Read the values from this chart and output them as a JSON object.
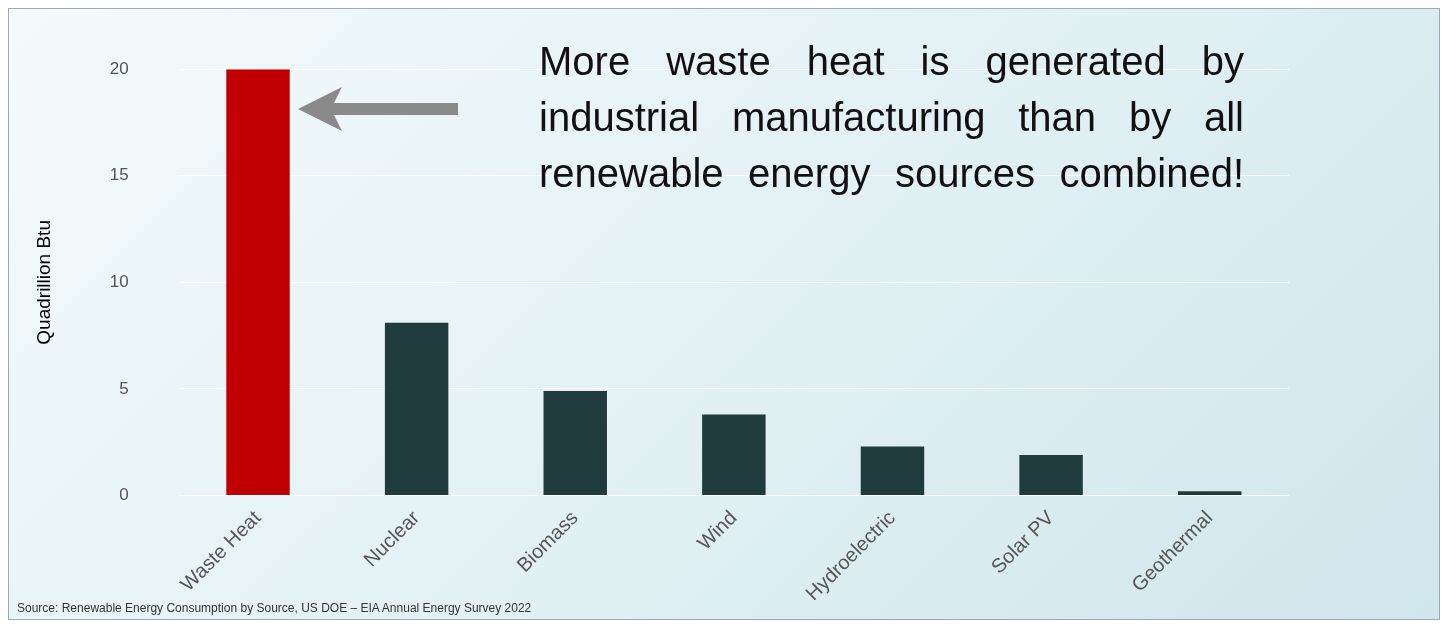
{
  "chart_data": {
    "type": "bar",
    "ylabel": "Quadrillion Btu",
    "categories": [
      "Waste Heat",
      "Nuclear",
      "Biomass",
      "Wind",
      "Hydroelectric",
      "Solar PV",
      "Geothermal"
    ],
    "values": [
      20,
      8.1,
      4.9,
      3.8,
      2.3,
      1.9,
      0.2
    ],
    "colors": [
      "#c00000",
      "#1f3b3d",
      "#1f3b3d",
      "#1f3b3d",
      "#1f3b3d",
      "#1f3b3d",
      "#1f3b3d"
    ],
    "ylim": [
      0,
      20
    ],
    "yticks": [
      0,
      5,
      10,
      15,
      20
    ],
    "grid": "y",
    "legend": false,
    "annotations": [
      "More waste heat is generated by industrial manufacturing than by all renewable energy sources combined!",
      "Source: Renewable Energy Consumption by Source, US DOE – EIA Annual Energy Survey 2022"
    ]
  }
}
